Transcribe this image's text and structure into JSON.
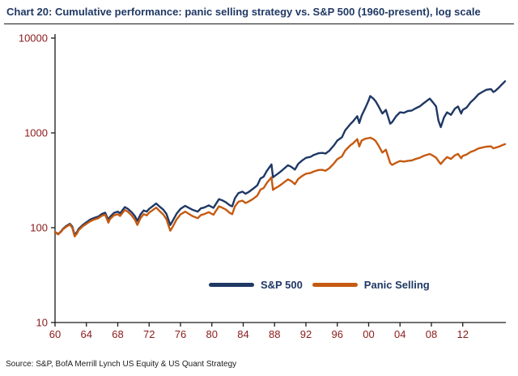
{
  "title": "Chart 20: Cumulative performance: panic selling strategy vs. S&P 500 (1960-present), log scale",
  "source": "Source: S&P, BofA Merrill Lynch US Equity & US Quant Strategy",
  "colors": {
    "title": "#1f3864",
    "axis_labels": "#8b1a1a",
    "axis_line": "#1a1a1a",
    "sp500": "#1f3864",
    "panic_selling": "#c55a11"
  },
  "chart_data": {
    "type": "line",
    "title": "Cumulative performance: panic selling strategy vs. S&P 500 (1960-present), log scale",
    "xlabel": "",
    "ylabel": "",
    "grid": false,
    "x_axis": {
      "range": [
        1960,
        2017.5
      ],
      "ticks": [
        1960,
        1964,
        1968,
        1972,
        1976,
        1980,
        1984,
        1988,
        1992,
        1996,
        2000,
        2004,
        2008,
        2012
      ],
      "tick_labels": [
        "60",
        "64",
        "68",
        "72",
        "76",
        "80",
        "84",
        "88",
        "92",
        "96",
        "00",
        "04",
        "08",
        "12"
      ]
    },
    "y_axis": {
      "scale": "log",
      "range": [
        10,
        10000
      ],
      "ticks": [
        10,
        100,
        1000,
        10000
      ],
      "tick_labels": [
        "10",
        "100",
        "1000",
        "10000"
      ]
    },
    "legend": {
      "position": "inside-bottom",
      "entries": [
        "S&P 500",
        "Panic Selling"
      ]
    },
    "series": [
      {
        "name": "S&P 500",
        "color": "#1f3864",
        "points": [
          [
            1960,
            90
          ],
          [
            1960.4,
            86
          ],
          [
            1960.8,
            92
          ],
          [
            1961,
            97
          ],
          [
            1961.4,
            104
          ],
          [
            1961.9,
            110
          ],
          [
            1962.2,
            103
          ],
          [
            1962.5,
            84
          ],
          [
            1962.8,
            90
          ],
          [
            1963,
            97
          ],
          [
            1963.5,
            106
          ],
          [
            1964,
            114
          ],
          [
            1964.5,
            122
          ],
          [
            1965,
            127
          ],
          [
            1965.5,
            131
          ],
          [
            1966,
            140
          ],
          [
            1966.4,
            144
          ],
          [
            1966.8,
            120
          ],
          [
            1967,
            130
          ],
          [
            1967.5,
            143
          ],
          [
            1968,
            148
          ],
          [
            1968.3,
            142
          ],
          [
            1968.9,
            165
          ],
          [
            1969.3,
            158
          ],
          [
            1969.8,
            145
          ],
          [
            1970.2,
            132
          ],
          [
            1970.5,
            118
          ],
          [
            1970.9,
            138
          ],
          [
            1971.3,
            152
          ],
          [
            1971.7,
            148
          ],
          [
            1972,
            158
          ],
          [
            1972.9,
            180
          ],
          [
            1973.3,
            168
          ],
          [
            1973.8,
            155
          ],
          [
            1974.2,
            140
          ],
          [
            1974.7,
            107
          ],
          [
            1975,
            118
          ],
          [
            1975.5,
            140
          ],
          [
            1976,
            158
          ],
          [
            1976.6,
            170
          ],
          [
            1977,
            163
          ],
          [
            1977.5,
            155
          ],
          [
            1978.2,
            148
          ],
          [
            1978.6,
            160
          ],
          [
            1979,
            163
          ],
          [
            1979.6,
            172
          ],
          [
            1980.2,
            162
          ],
          [
            1980.9,
            200
          ],
          [
            1981.3,
            195
          ],
          [
            1981.8,
            185
          ],
          [
            1982.3,
            172
          ],
          [
            1982.6,
            168
          ],
          [
            1982.95,
            205
          ],
          [
            1983.4,
            232
          ],
          [
            1983.9,
            240
          ],
          [
            1984.3,
            228
          ],
          [
            1984.7,
            238
          ],
          [
            1985.2,
            255
          ],
          [
            1985.8,
            280
          ],
          [
            1986.2,
            330
          ],
          [
            1986.6,
            345
          ],
          [
            1987,
            395
          ],
          [
            1987.6,
            465
          ],
          [
            1987.8,
            340
          ],
          [
            1988,
            350
          ],
          [
            1988.5,
            375
          ],
          [
            1989,
            405
          ],
          [
            1989.7,
            455
          ],
          [
            1990.1,
            440
          ],
          [
            1990.6,
            410
          ],
          [
            1991,
            470
          ],
          [
            1991.5,
            510
          ],
          [
            1992,
            545
          ],
          [
            1992.6,
            560
          ],
          [
            1993,
            585
          ],
          [
            1993.6,
            610
          ],
          [
            1994.1,
            615
          ],
          [
            1994.5,
            605
          ],
          [
            1995,
            650
          ],
          [
            1995.6,
            745
          ],
          [
            1996,
            830
          ],
          [
            1996.6,
            900
          ],
          [
            1997,
            1060
          ],
          [
            1997.7,
            1250
          ],
          [
            1998,
            1320
          ],
          [
            1998.55,
            1500
          ],
          [
            1998.8,
            1270
          ],
          [
            1999.1,
            1520
          ],
          [
            1999.6,
            1850
          ],
          [
            2000,
            2200
          ],
          [
            2000.2,
            2450
          ],
          [
            2000.6,
            2300
          ],
          [
            2000.9,
            2150
          ],
          [
            2001.2,
            1950
          ],
          [
            2001.75,
            1600
          ],
          [
            2002.2,
            1750
          ],
          [
            2002.75,
            1250
          ],
          [
            2003,
            1300
          ],
          [
            2003.5,
            1500
          ],
          [
            2004,
            1650
          ],
          [
            2004.5,
            1630
          ],
          [
            2005,
            1700
          ],
          [
            2005.5,
            1720
          ],
          [
            2006,
            1820
          ],
          [
            2006.5,
            1900
          ],
          [
            2007,
            2050
          ],
          [
            2007.8,
            2300
          ],
          [
            2008.2,
            2100
          ],
          [
            2008.6,
            1900
          ],
          [
            2008.9,
            1350
          ],
          [
            2009.2,
            1150
          ],
          [
            2009.6,
            1450
          ],
          [
            2010,
            1650
          ],
          [
            2010.5,
            1550
          ],
          [
            2011,
            1800
          ],
          [
            2011.4,
            1900
          ],
          [
            2011.8,
            1600
          ],
          [
            2012,
            1750
          ],
          [
            2012.5,
            1850
          ],
          [
            2013,
            2100
          ],
          [
            2013.5,
            2300
          ],
          [
            2014,
            2550
          ],
          [
            2014.5,
            2700
          ],
          [
            2015,
            2850
          ],
          [
            2015.6,
            2900
          ],
          [
            2015.9,
            2700
          ],
          [
            2016.1,
            2750
          ],
          [
            2016.6,
            3000
          ],
          [
            2017,
            3250
          ],
          [
            2017.4,
            3500
          ]
        ]
      },
      {
        "name": "Panic Selling",
        "color": "#c55a11",
        "points": [
          [
            1960,
            90
          ],
          [
            1960.4,
            85
          ],
          [
            1960.8,
            91
          ],
          [
            1961,
            96
          ],
          [
            1961.4,
            102
          ],
          [
            1961.9,
            108
          ],
          [
            1962.2,
            100
          ],
          [
            1962.5,
            81
          ],
          [
            1962.8,
            87
          ],
          [
            1963,
            94
          ],
          [
            1963.5,
            103
          ],
          [
            1964,
            110
          ],
          [
            1964.5,
            117
          ],
          [
            1965,
            122
          ],
          [
            1965.5,
            126
          ],
          [
            1966,
            134
          ],
          [
            1966.4,
            137
          ],
          [
            1966.8,
            113
          ],
          [
            1967,
            123
          ],
          [
            1967.5,
            135
          ],
          [
            1968,
            139
          ],
          [
            1968.3,
            133
          ],
          [
            1968.9,
            154
          ],
          [
            1969.3,
            147
          ],
          [
            1969.8,
            134
          ],
          [
            1970.2,
            121
          ],
          [
            1970.5,
            107
          ],
          [
            1970.9,
            126
          ],
          [
            1971.3,
            139
          ],
          [
            1971.7,
            135
          ],
          [
            1972,
            144
          ],
          [
            1972.9,
            163
          ],
          [
            1973.3,
            151
          ],
          [
            1973.8,
            138
          ],
          [
            1974.2,
            123
          ],
          [
            1974.7,
            93
          ],
          [
            1975,
            102
          ],
          [
            1975.5,
            122
          ],
          [
            1976,
            138
          ],
          [
            1976.6,
            148
          ],
          [
            1977,
            141
          ],
          [
            1977.5,
            133
          ],
          [
            1978.2,
            126
          ],
          [
            1978.6,
            136
          ],
          [
            1979,
            139
          ],
          [
            1979.6,
            146
          ],
          [
            1980.2,
            137
          ],
          [
            1980.9,
            168
          ],
          [
            1981.3,
            163
          ],
          [
            1981.8,
            155
          ],
          [
            1982.3,
            143
          ],
          [
            1982.6,
            139
          ],
          [
            1982.95,
            168
          ],
          [
            1983.4,
            188
          ],
          [
            1983.9,
            193
          ],
          [
            1984.3,
            182
          ],
          [
            1984.7,
            189
          ],
          [
            1985.2,
            200
          ],
          [
            1985.8,
            218
          ],
          [
            1986.2,
            252
          ],
          [
            1986.6,
            262
          ],
          [
            1987,
            295
          ],
          [
            1987.6,
            340
          ],
          [
            1987.8,
            250
          ],
          [
            1988,
            258
          ],
          [
            1988.5,
            273
          ],
          [
            1989,
            292
          ],
          [
            1989.7,
            323
          ],
          [
            1990.1,
            312
          ],
          [
            1990.6,
            288
          ],
          [
            1991,
            326
          ],
          [
            1991.5,
            350
          ],
          [
            1992,
            371
          ],
          [
            1992.6,
            378
          ],
          [
            1993,
            392
          ],
          [
            1993.6,
            406
          ],
          [
            1994.1,
            408
          ],
          [
            1994.5,
            399
          ],
          [
            1995,
            425
          ],
          [
            1995.6,
            480
          ],
          [
            1996,
            528
          ],
          [
            1996.6,
            565
          ],
          [
            1997,
            650
          ],
          [
            1997.7,
            745
          ],
          [
            1998,
            775
          ],
          [
            1998.55,
            860
          ],
          [
            1998.8,
            720
          ],
          [
            1999.1,
            830
          ],
          [
            1999.6,
            870
          ],
          [
            2000,
            880
          ],
          [
            2000.2,
            890
          ],
          [
            2000.6,
            860
          ],
          [
            2000.9,
            820
          ],
          [
            2001.2,
            750
          ],
          [
            2001.75,
            620
          ],
          [
            2002.2,
            665
          ],
          [
            2002.75,
            480
          ],
          [
            2003,
            460
          ],
          [
            2003.5,
            485
          ],
          [
            2004,
            505
          ],
          [
            2004.5,
            498
          ],
          [
            2005,
            508
          ],
          [
            2005.5,
            512
          ],
          [
            2006,
            532
          ],
          [
            2006.5,
            545
          ],
          [
            2007,
            572
          ],
          [
            2007.8,
            600
          ],
          [
            2008.2,
            575
          ],
          [
            2008.6,
            548
          ],
          [
            2008.9,
            505
          ],
          [
            2009.2,
            470
          ],
          [
            2009.6,
            515
          ],
          [
            2010,
            555
          ],
          [
            2010.5,
            532
          ],
          [
            2011,
            580
          ],
          [
            2011.4,
            600
          ],
          [
            2011.8,
            540
          ],
          [
            2012,
            572
          ],
          [
            2012.5,
            592
          ],
          [
            2013,
            630
          ],
          [
            2013.5,
            652
          ],
          [
            2014,
            685
          ],
          [
            2014.5,
            700
          ],
          [
            2015,
            715
          ],
          [
            2015.6,
            722
          ],
          [
            2015.9,
            688
          ],
          [
            2016.1,
            695
          ],
          [
            2016.6,
            715
          ],
          [
            2017,
            740
          ],
          [
            2017.4,
            760
          ]
        ]
      }
    ]
  }
}
